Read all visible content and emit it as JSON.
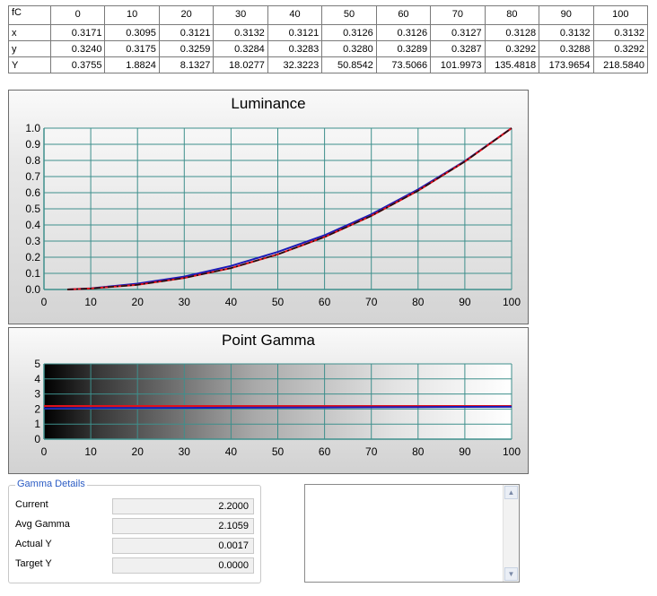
{
  "table": {
    "corner_label": "fC",
    "columns": [
      "0",
      "10",
      "20",
      "30",
      "40",
      "50",
      "60",
      "70",
      "80",
      "90",
      "100"
    ],
    "rows": [
      {
        "label": "x",
        "values": [
          "0.3171",
          "0.3095",
          "0.3121",
          "0.3132",
          "0.3121",
          "0.3126",
          "0.3126",
          "0.3127",
          "0.3128",
          "0.3132",
          "0.3132"
        ]
      },
      {
        "label": "y",
        "values": [
          "0.3240",
          "0.3175",
          "0.3259",
          "0.3284",
          "0.3283",
          "0.3280",
          "0.3289",
          "0.3287",
          "0.3292",
          "0.3288",
          "0.3292"
        ]
      },
      {
        "label": "Y",
        "values": [
          "0.3755",
          "1.8824",
          "8.1327",
          "18.0277",
          "32.3223",
          "50.8542",
          "73.5066",
          "101.9973",
          "135.4818",
          "173.9654",
          "218.5840"
        ]
      }
    ]
  },
  "chart_data": [
    {
      "type": "line",
      "title": "Luminance",
      "xlabel": "",
      "ylabel": "",
      "xlim": [
        0,
        100
      ],
      "ylim": [
        0,
        1
      ],
      "x_ticks": [
        "0",
        "10",
        "20",
        "30",
        "40",
        "50",
        "60",
        "70",
        "80",
        "90",
        "100"
      ],
      "y_ticks": [
        "0.0",
        "0.1",
        "0.2",
        "0.3",
        "0.4",
        "0.5",
        "0.6",
        "0.7",
        "0.8",
        "0.9",
        "1.0"
      ],
      "grid": true,
      "x": [
        5,
        10,
        20,
        30,
        40,
        50,
        60,
        70,
        80,
        90,
        100
      ],
      "series": [
        {
          "color": "#1a1ab8",
          "style": "solid",
          "values": [
            0.0,
            0.007,
            0.036,
            0.08,
            0.146,
            0.233,
            0.336,
            0.466,
            0.62,
            0.796,
            1.0
          ]
        },
        {
          "color": "#e0121a",
          "style": "solid",
          "values": [
            0.0,
            0.006,
            0.029,
            0.071,
            0.133,
            0.218,
            0.325,
            0.456,
            0.612,
            0.793,
            1.0
          ]
        },
        {
          "color": "#111111",
          "style": "dashdot",
          "values": [
            0.0,
            0.006,
            0.029,
            0.071,
            0.133,
            0.218,
            0.325,
            0.456,
            0.612,
            0.793,
            1.0
          ]
        }
      ]
    },
    {
      "type": "line",
      "title": "Point Gamma",
      "xlabel": "",
      "ylabel": "",
      "xlim": [
        0,
        100
      ],
      "ylim": [
        0,
        5
      ],
      "x_ticks": [
        "0",
        "10",
        "20",
        "30",
        "40",
        "50",
        "60",
        "70",
        "80",
        "90",
        "100"
      ],
      "y_ticks": [
        "0",
        "1",
        "2",
        "3",
        "4",
        "5"
      ],
      "grid": true,
      "background": "grayscale-ramp",
      "x": [
        0,
        10,
        20,
        30,
        40,
        50,
        60,
        70,
        80,
        90,
        100
      ],
      "series": [
        {
          "color": "#e0121a",
          "style": "solid",
          "values": [
            2.2,
            2.2,
            2.2,
            2.2,
            2.2,
            2.2,
            2.2,
            2.2,
            2.2,
            2.2,
            2.2
          ]
        },
        {
          "color": "#1a1ab8",
          "style": "solid",
          "values": [
            2.05,
            2.06,
            2.07,
            2.08,
            2.09,
            2.1,
            2.11,
            2.12,
            2.13,
            2.14,
            2.15
          ]
        }
      ]
    }
  ],
  "gamma_details": {
    "legend": "Gamma Details",
    "fields": [
      {
        "label": "Current",
        "value": "2.2000"
      },
      {
        "label": "Avg Gamma",
        "value": "2.1059"
      },
      {
        "label": "Actual Y",
        "value": "0.0017"
      },
      {
        "label": "Target Y",
        "value": "0.0000"
      }
    ]
  },
  "notes": {
    "scroll_up_icon": "triangle-up",
    "scroll_down_icon": "triangle-down"
  }
}
